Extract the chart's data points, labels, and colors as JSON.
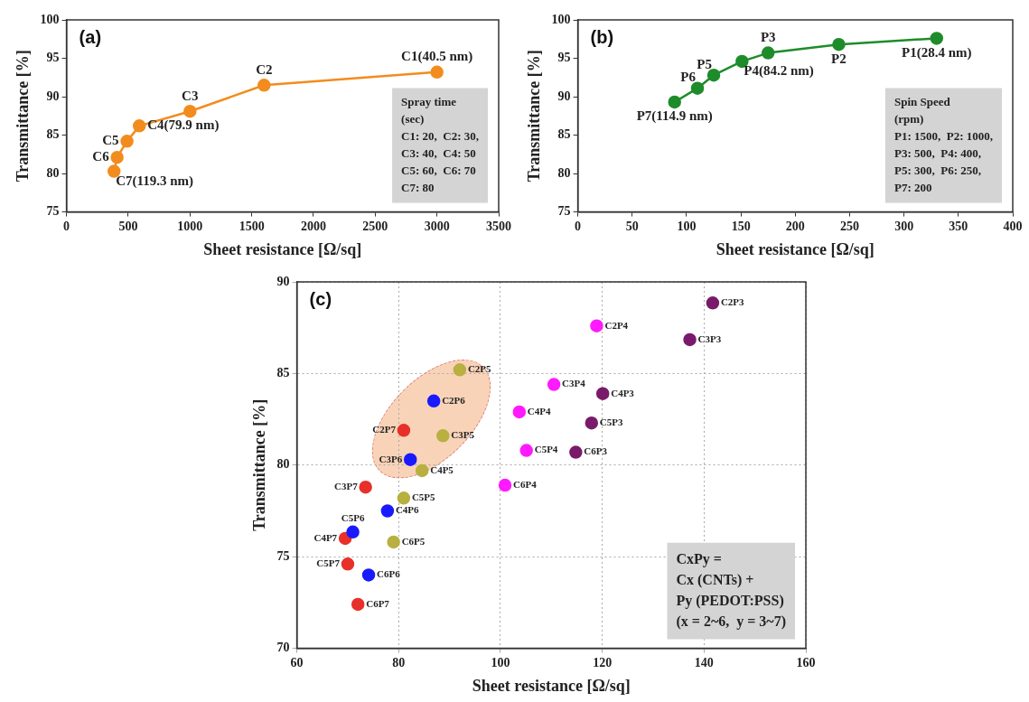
{
  "chart_data": [
    {
      "type": "line",
      "title": "(a)",
      "xlabel": "Sheet resistance [Ω/sq]",
      "ylabel": "Transmittance [%]",
      "color": "#f28c1e",
      "marker": "circle",
      "line_style": "solid",
      "x": [
        3000,
        1600,
        1000,
        590,
        490,
        410,
        385
      ],
      "values": [
        93.2,
        91.5,
        88.1,
        86.2,
        84.2,
        82.1,
        80.3
      ],
      "xlim": [
        0,
        3500
      ],
      "xticks": [
        0,
        500,
        1000,
        1500,
        2000,
        2500,
        3000,
        3500
      ],
      "ylim": [
        75,
        100
      ],
      "yticks": [
        75,
        80,
        85,
        90,
        95,
        100
      ],
      "annotations": [
        {
          "text": "C1(40.5 nm)",
          "x": 3000,
          "y": 93.2
        },
        {
          "text": "C2",
          "x": 1600,
          "y": 91.5
        },
        {
          "text": "C3",
          "x": 1000,
          "y": 88.1
        },
        {
          "text": "C4(79.9 nm)",
          "x": 590,
          "y": 86.2
        },
        {
          "text": "C5",
          "x": 490,
          "y": 84.2
        },
        {
          "text": "C6",
          "x": 410,
          "y": 82.1
        },
        {
          "text": "C7(119.3 nm)",
          "x": 385,
          "y": 80.3
        },
        "Spray time",
        "(sec)",
        "C1: 20,  C2: 30,",
        "C3: 40,  C4: 50",
        "C5: 60,  C6: 70",
        "C7: 80"
      ]
    },
    {
      "type": "line",
      "title": "(b)",
      "xlabel": "Sheet resistance [Ω/sq]",
      "ylabel": "Transmittance [%]",
      "color": "#1e8c2a",
      "marker": "circle",
      "line_style": "solid",
      "x": [
        330,
        240,
        175,
        151,
        125,
        110,
        89
      ],
      "values": [
        97.6,
        96.8,
        95.7,
        94.6,
        92.8,
        91.1,
        89.3
      ],
      "xlim": [
        0,
        400
      ],
      "xticks": [
        0,
        50,
        100,
        150,
        200,
        250,
        300,
        350,
        400
      ],
      "ylim": [
        75,
        100
      ],
      "yticks": [
        75,
        80,
        85,
        90,
        95,
        100
      ],
      "annotations": [
        {
          "text": "P1(28.4 nm)",
          "x": 330,
          "y": 97.6
        },
        {
          "text": "P2",
          "x": 240,
          "y": 96.8
        },
        {
          "text": "P3",
          "x": 175,
          "y": 95.7
        },
        {
          "text": "P4(84.2 nm)",
          "x": 151,
          "y": 94.6
        },
        {
          "text": "P5",
          "x": 125,
          "y": 92.8
        },
        {
          "text": "P6",
          "x": 110,
          "y": 91.1
        },
        {
          "text": "P7(114.9 nm)",
          "x": 89,
          "y": 89.3
        },
        "Spin Speed",
        "(rpm)",
        "P1: 1500,  P2: 1000,",
        "P3: 500,  P4: 400,",
        "P5: 300,  P6: 250,",
        "P7: 200"
      ]
    },
    {
      "type": "scatter",
      "title": "(c)",
      "xlabel": "Sheet resistance [Ω/sq]",
      "ylabel": "Transmittance [%]",
      "marker": "circle",
      "grid": true,
      "xlim": [
        60,
        160
      ],
      "xticks": [
        60,
        80,
        100,
        120,
        140,
        160
      ],
      "ylim": [
        70,
        90
      ],
      "yticks": [
        70,
        75,
        80,
        85,
        90
      ],
      "series": [
        {
          "color": "#7a1a6a",
          "x": [
            141.7,
            137.2,
            120.1,
            117.9,
            114.8
          ],
          "values": [
            88.85,
            86.85,
            83.9,
            82.3,
            80.7
          ]
        },
        {
          "color": "#ff1aff",
          "x": [
            118.9,
            110.5,
            103.7,
            105.1,
            100.9
          ],
          "values": [
            87.6,
            84.4,
            82.9,
            80.8,
            78.9
          ]
        },
        {
          "color": "#b8b040",
          "x": [
            92,
            88.7,
            84.6,
            81,
            79
          ],
          "values": [
            85.2,
            81.6,
            79.7,
            78.2,
            75.8
          ]
        },
        {
          "color": "#1a1aff",
          "x": [
            86.9,
            82.3,
            77.8,
            71,
            74.1
          ],
          "values": [
            83.5,
            80.3,
            77.5,
            76.35,
            74
          ]
        },
        {
          "color": "#e8302a",
          "x": [
            81,
            73.5,
            69.5,
            70,
            72
          ],
          "values": [
            81.9,
            78.8,
            76,
            74.6,
            72.4
          ]
        }
      ],
      "annotations": [
        {
          "text": "C2P3",
          "x": 141.7,
          "y": 88.85
        },
        {
          "text": "C3P3",
          "x": 137.2,
          "y": 86.85
        },
        {
          "text": "C4P3",
          "x": 120.1,
          "y": 83.9
        },
        {
          "text": "C5P3",
          "x": 117.9,
          "y": 82.3
        },
        {
          "text": "C6P3",
          "x": 114.8,
          "y": 80.7
        },
        {
          "text": "C2P4",
          "x": 118.9,
          "y": 87.6
        },
        {
          "text": "C3P4",
          "x": 110.5,
          "y": 84.4
        },
        {
          "text": "C4P4",
          "x": 103.7,
          "y": 82.9
        },
        {
          "text": "C5P4",
          "x": 105.1,
          "y": 80.8
        },
        {
          "text": "C6P4",
          "x": 100.9,
          "y": 78.9
        },
        {
          "text": "C2P5",
          "x": 92,
          "y": 85.2
        },
        {
          "text": "C3P5",
          "x": 88.7,
          "y": 81.6
        },
        {
          "text": "C4P5",
          "x": 84.6,
          "y": 79.7
        },
        {
          "text": "C5P5",
          "x": 81,
          "y": 78.2
        },
        {
          "text": "C6P5",
          "x": 79,
          "y": 75.8
        },
        {
          "text": "C2P6",
          "x": 86.9,
          "y": 83.5
        },
        {
          "text": "C3P6",
          "x": 82.3,
          "y": 80.3
        },
        {
          "text": "C4P6",
          "x": 77.8,
          "y": 77.5
        },
        {
          "text": "C5P6",
          "x": 71,
          "y": 76.35
        },
        {
          "text": "C6P6",
          "x": 74.1,
          "y": 74
        },
        {
          "text": "C2P7",
          "x": 81,
          "y": 81.9
        },
        {
          "text": "C3P7",
          "x": 73.5,
          "y": 78.8
        },
        {
          "text": "C4P7",
          "x": 69.5,
          "y": 76
        },
        {
          "text": "C5P7",
          "x": 70,
          "y": 74.6
        },
        {
          "text": "C6P7",
          "x": 72,
          "y": 72.4
        },
        "CxPy =",
        "Cx (CNTs) +",
        "Py (PEDOT:PSS)",
        "(x = 2~6,  y = 3~7)"
      ]
    }
  ]
}
